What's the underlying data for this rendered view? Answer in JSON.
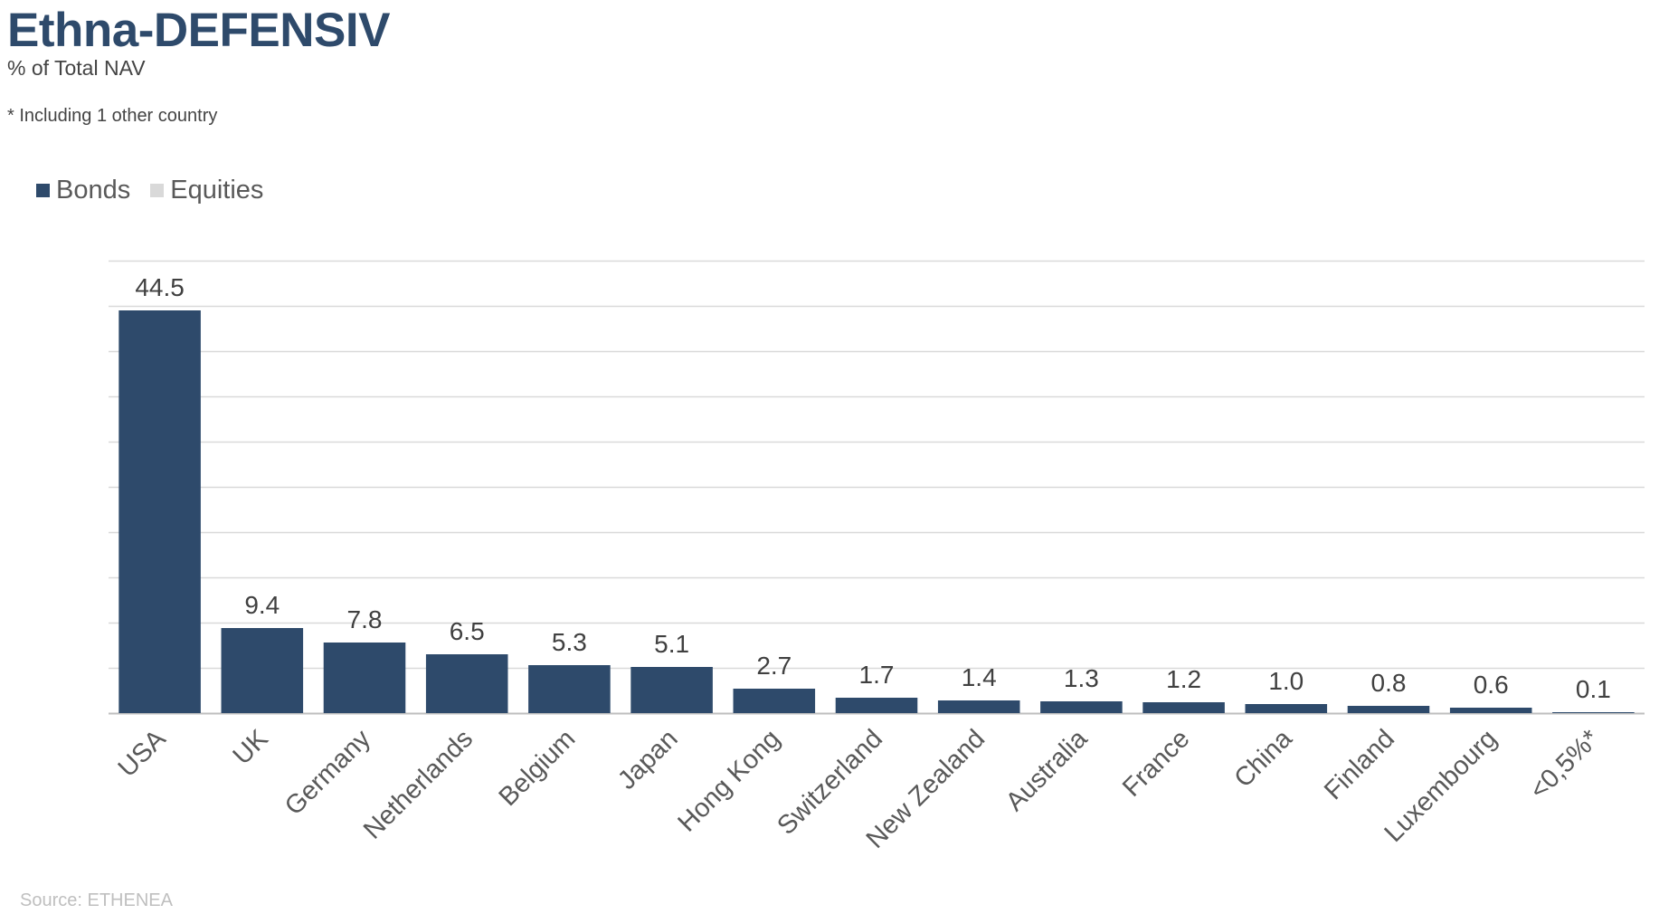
{
  "header": {
    "title": "Ethna-DEFENSIV",
    "subtitle": "% of Total NAV",
    "footnote": "* Including 1 other country"
  },
  "footer": {
    "source": "Source: ETHENEA"
  },
  "chart_data": {
    "type": "bar",
    "title": "Ethna-DEFENSIV",
    "subtitle": "% of Total NAV",
    "categories": [
      "USA",
      "UK",
      "Germany",
      "Netherlands",
      "Belgium",
      "Japan",
      "Hong Kong",
      "Switzerland",
      "New Zealand",
      "Australia",
      "France",
      "China",
      "Finland",
      "Luxembourg",
      "<0,5%*"
    ],
    "series": [
      {
        "name": "Bonds",
        "color": "#2e4a6b",
        "values": [
          44.5,
          9.4,
          7.8,
          6.5,
          5.3,
          5.1,
          2.7,
          1.7,
          1.4,
          1.3,
          1.2,
          1.0,
          0.8,
          0.6,
          0.1
        ]
      },
      {
        "name": "Equities",
        "color": "#d9d9d9",
        "values": [
          0,
          0,
          0,
          0,
          0,
          0,
          0,
          0,
          0,
          0,
          0,
          0,
          0,
          0,
          0
        ]
      }
    ],
    "data_labels": [
      "44.5",
      "9.4",
      "7.8",
      "6.5",
      "5.3",
      "5.1",
      "2.7",
      "1.7",
      "1.4",
      "1.3",
      "1.2",
      "1.0",
      "0.8",
      "0.6",
      "0.1"
    ],
    "xlabel": "",
    "ylabel": "",
    "ylim": [
      0,
      50
    ],
    "grid": true,
    "y_axis_labels_shown": false,
    "legend_position": "top-left"
  }
}
